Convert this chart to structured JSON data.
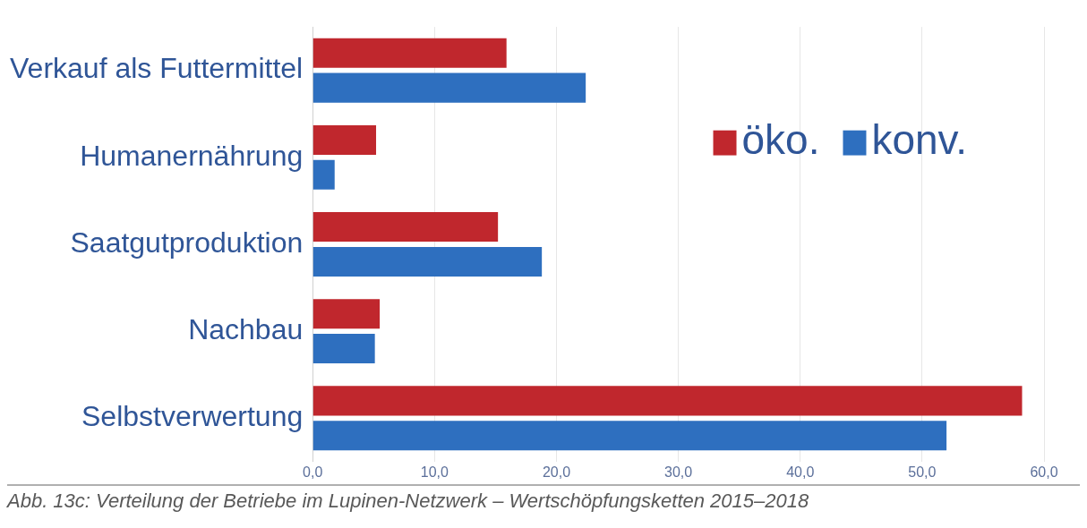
{
  "chart_data": {
    "type": "bar",
    "orientation": "horizontal",
    "categories": [
      "Verkauf als Futtermittel",
      "Humanernährung",
      "Saatgutproduktion",
      "Nachbau",
      "Selbstverwertung"
    ],
    "series": [
      {
        "name": "öko.",
        "color": "#c0272d",
        "values": [
          15.9,
          5.2,
          15.2,
          5.5,
          58.2
        ]
      },
      {
        "name": "konv.",
        "color": "#2e6fbf",
        "values": [
          22.4,
          1.8,
          18.8,
          5.1,
          52.0
        ]
      }
    ],
    "xlim": [
      0,
      60
    ],
    "xticks": [
      {
        "value": 0,
        "label": "0,0"
      },
      {
        "value": 10,
        "label": "10,0"
      },
      {
        "value": 20,
        "label": "20,0"
      },
      {
        "value": 30,
        "label": "30,0"
      },
      {
        "value": 40,
        "label": "40,0"
      },
      {
        "value": 50,
        "label": "50,0"
      },
      {
        "value": 60,
        "label": "60,0"
      }
    ],
    "grid": "x",
    "legend": "top right",
    "annotations": [
      "Abb. 13c: Verteilung der Betriebe im Lupinen-Netzwerk – Wertschöpfungsketten 2015–2018"
    ]
  }
}
